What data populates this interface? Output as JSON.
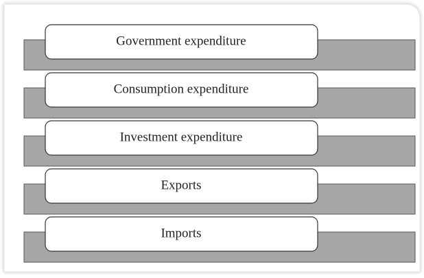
{
  "items": [
    "Government expenditure",
    "Consumption expenditure",
    "Investment expenditure",
    "Exports",
    "Imports"
  ]
}
